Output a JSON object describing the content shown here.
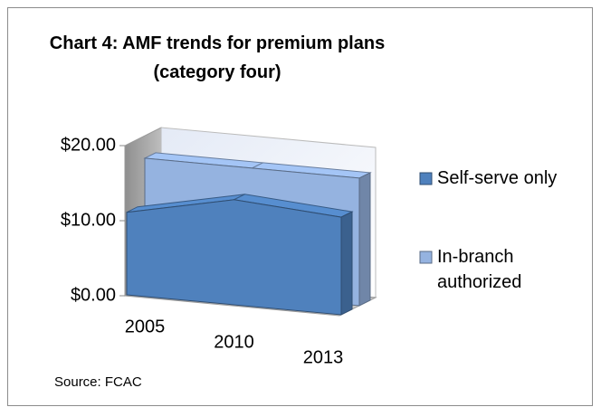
{
  "chart_data": {
    "type": "area3d",
    "title": "Chart 4: AMF trends for premium plans (category four)",
    "categories": [
      "2005",
      "2010",
      "2013"
    ],
    "series": [
      {
        "name": "Self-serve only",
        "color": "#4f81bd",
        "values": [
          11,
          14,
          13
        ]
      },
      {
        "name": "In-branch authorized",
        "color": "#95b3e0",
        "values": [
          17,
          17,
          17
        ]
      }
    ],
    "ylim": [
      0,
      20
    ],
    "yticks": [
      {
        "value": 0,
        "label": "$0.00"
      },
      {
        "value": 10,
        "label": "$10.00"
      },
      {
        "value": 20,
        "label": "$20.00"
      }
    ],
    "annotation": "Source: FCAC",
    "legend": "right"
  }
}
